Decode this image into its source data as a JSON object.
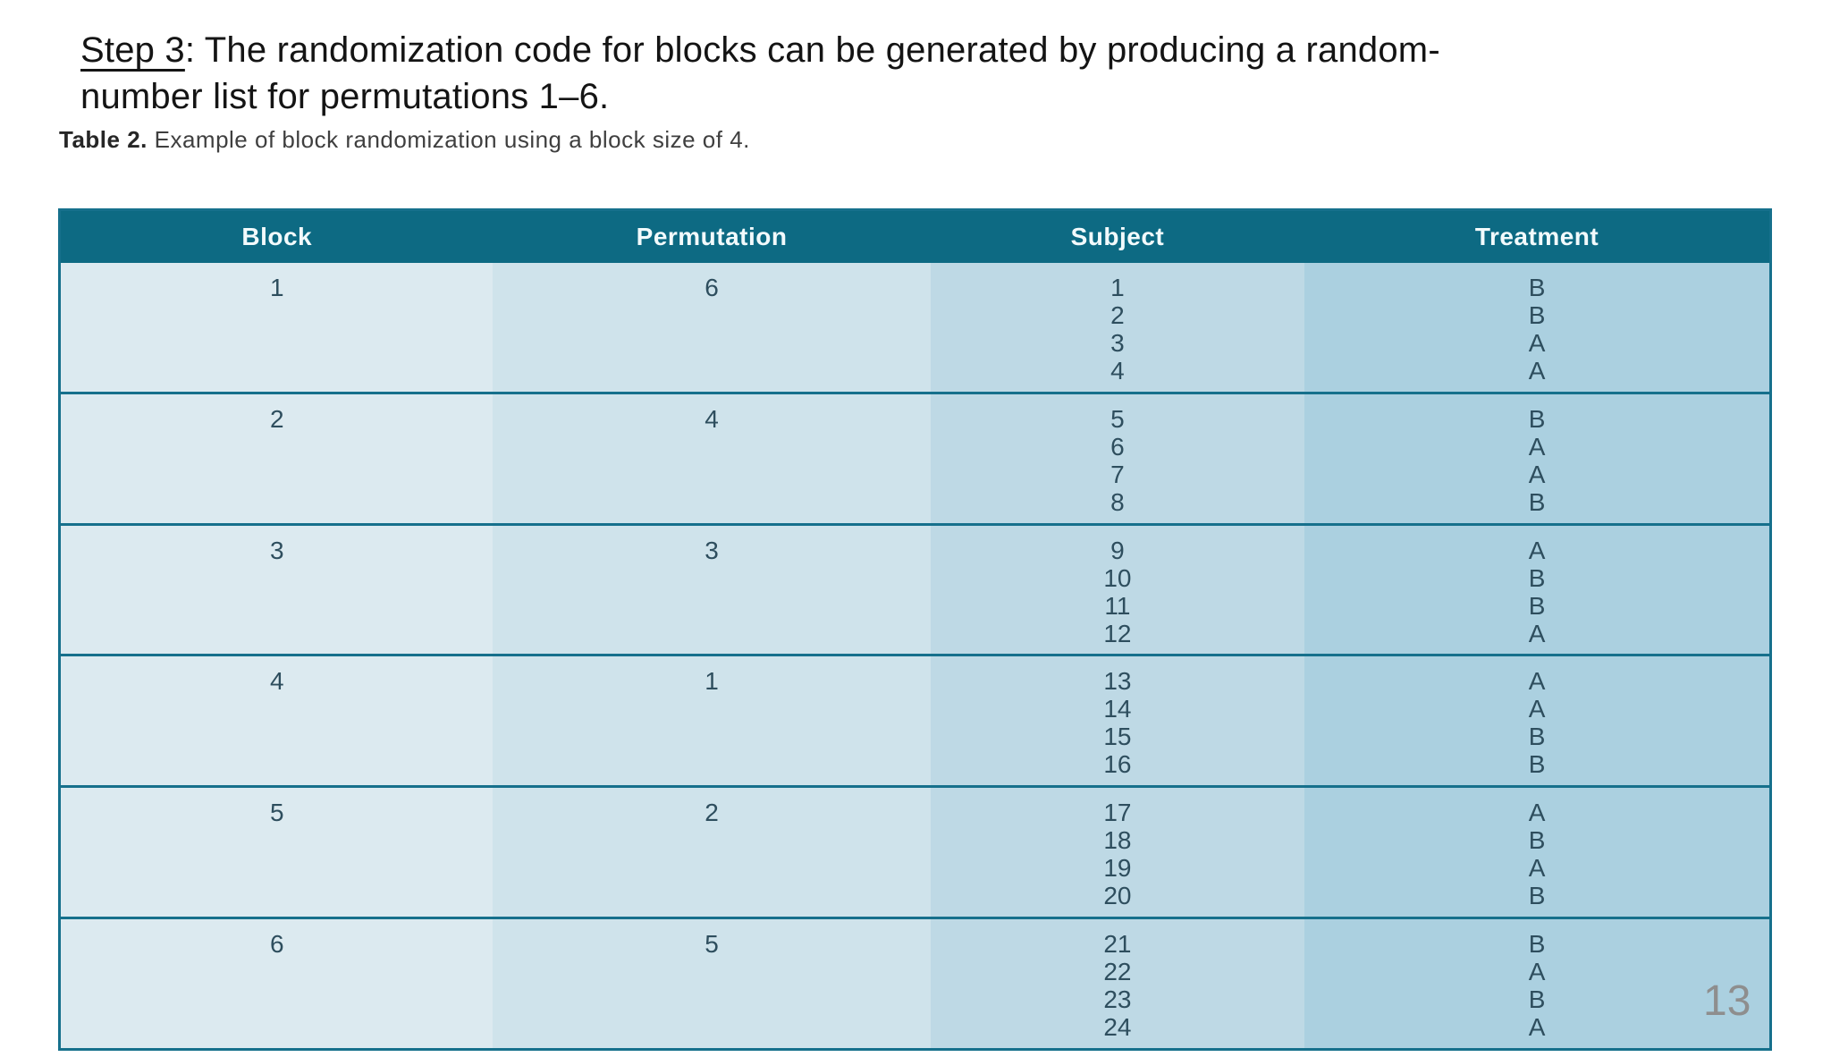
{
  "slide": {
    "title": {
      "step": "Step 3",
      "line1_rest": ": The randomization code for blocks can be generated by producing a random-",
      "line2": "number list for permutations 1–6."
    },
    "caption": {
      "label": "Table 2.",
      "text": " Example of block randomization using a block size of 4."
    },
    "page_number": "13"
  },
  "table": {
    "headers": [
      "Block",
      "Permutation",
      "Subject",
      "Treatment"
    ],
    "rows": [
      {
        "block": "1",
        "permutation": "6",
        "subjects": [
          "1",
          "2",
          "3",
          "4"
        ],
        "treatments": [
          "B",
          "B",
          "A",
          "A"
        ]
      },
      {
        "block": "2",
        "permutation": "4",
        "subjects": [
          "5",
          "6",
          "7",
          "8"
        ],
        "treatments": [
          "B",
          "A",
          "A",
          "B"
        ]
      },
      {
        "block": "3",
        "permutation": "3",
        "subjects": [
          "9",
          "10",
          "11",
          "12"
        ],
        "treatments": [
          "A",
          "B",
          "B",
          "A"
        ]
      },
      {
        "block": "4",
        "permutation": "1",
        "subjects": [
          "13",
          "14",
          "15",
          "16"
        ],
        "treatments": [
          "A",
          "A",
          "B",
          "B"
        ]
      },
      {
        "block": "5",
        "permutation": "2",
        "subjects": [
          "17",
          "18",
          "19",
          "20"
        ],
        "treatments": [
          "A",
          "B",
          "A",
          "B"
        ]
      },
      {
        "block": "6",
        "permutation": "5",
        "subjects": [
          "21",
          "22",
          "23",
          "24"
        ],
        "treatments": [
          "B",
          "A",
          "B",
          "A"
        ]
      }
    ],
    "colors": {
      "header_bg": "#0d6a83",
      "header_text": "#f2fafc",
      "col_block": "#dceaf0",
      "col_permutation": "#cfe3eb",
      "col_subject": "#bed9e5",
      "col_treatment": "#abd0e0",
      "border": "#16708c",
      "cell_text": "#2e4e5e",
      "page_number_text": "#8e8e8e"
    }
  }
}
